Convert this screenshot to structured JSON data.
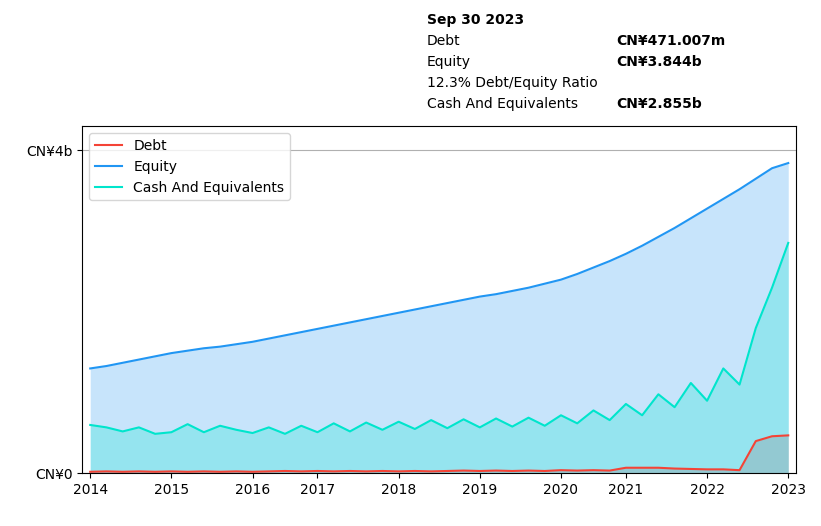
{
  "chart_data": {
    "type": "area",
    "stacked": false,
    "grid": true,
    "legend": "upper left",
    "categories": [
      "2014",
      null,
      null,
      null,
      null,
      "2015",
      null,
      null,
      null,
      null,
      "2016",
      null,
      null,
      null,
      "2017",
      null,
      null,
      null,
      null,
      "2018",
      null,
      null,
      null,
      null,
      "2019",
      null,
      null,
      null,
      null,
      "2020",
      null,
      null,
      null,
      "2021",
      null,
      null,
      null,
      null,
      "2022",
      null,
      null,
      null,
      null,
      "2023"
    ],
    "ylim": [
      0,
      4.3
    ],
    "yticks": [
      {
        "value": 0,
        "label": "CN¥0"
      },
      {
        "value": 4,
        "label": "CN¥4b"
      }
    ],
    "annotations": [
      [
        "Sep 30 2023"
      ],
      [
        "Debt",
        "CN¥471.007m"
      ],
      [
        "Equity",
        "CN¥3.844b"
      ],
      [
        "12.3% Debt/Equity Ratio"
      ],
      [
        "Cash And Equivalents",
        "CN¥2.855b"
      ]
    ],
    "series": [
      {
        "name": "Debt",
        "color": "#f44336",
        "values": [
          0.02,
          0.025,
          0.02,
          0.025,
          0.02,
          0.025,
          0.02,
          0.025,
          0.02,
          0.025,
          0.02,
          0.025,
          0.03,
          0.025,
          0.03,
          0.025,
          0.03,
          0.025,
          0.03,
          0.025,
          0.03,
          0.025,
          0.03,
          0.035,
          0.03,
          0.035,
          0.03,
          0.035,
          0.03,
          0.04,
          0.035,
          0.04,
          0.035,
          0.07,
          0.07,
          0.07,
          0.06,
          0.055,
          0.05,
          0.05,
          0.04,
          0.4,
          0.46,
          0.471
        ]
      },
      {
        "name": "Equity",
        "color": "#2196f3",
        "values": [
          1.3,
          1.33,
          1.37,
          1.41,
          1.45,
          1.49,
          1.52,
          1.55,
          1.57,
          1.6,
          1.63,
          1.67,
          1.71,
          1.75,
          1.79,
          1.83,
          1.87,
          1.91,
          1.95,
          1.99,
          2.03,
          2.07,
          2.11,
          2.15,
          2.19,
          2.22,
          2.26,
          2.3,
          2.35,
          2.4,
          2.47,
          2.55,
          2.63,
          2.72,
          2.82,
          2.93,
          3.04,
          3.16,
          3.28,
          3.4,
          3.52,
          3.65,
          3.78,
          3.844
        ]
      },
      {
        "name": "Cash And Equivalents",
        "color": "#00e5cc",
        "values": [
          0.6,
          0.57,
          0.52,
          0.57,
          0.49,
          0.51,
          0.61,
          0.51,
          0.59,
          0.54,
          0.5,
          0.57,
          0.49,
          0.59,
          0.51,
          0.62,
          0.52,
          0.63,
          0.54,
          0.64,
          0.55,
          0.66,
          0.56,
          0.67,
          0.57,
          0.68,
          0.58,
          0.69,
          0.59,
          0.72,
          0.62,
          0.78,
          0.66,
          0.86,
          0.72,
          0.98,
          0.82,
          1.12,
          0.9,
          1.3,
          1.1,
          1.8,
          2.3,
          2.855
        ]
      }
    ]
  }
}
